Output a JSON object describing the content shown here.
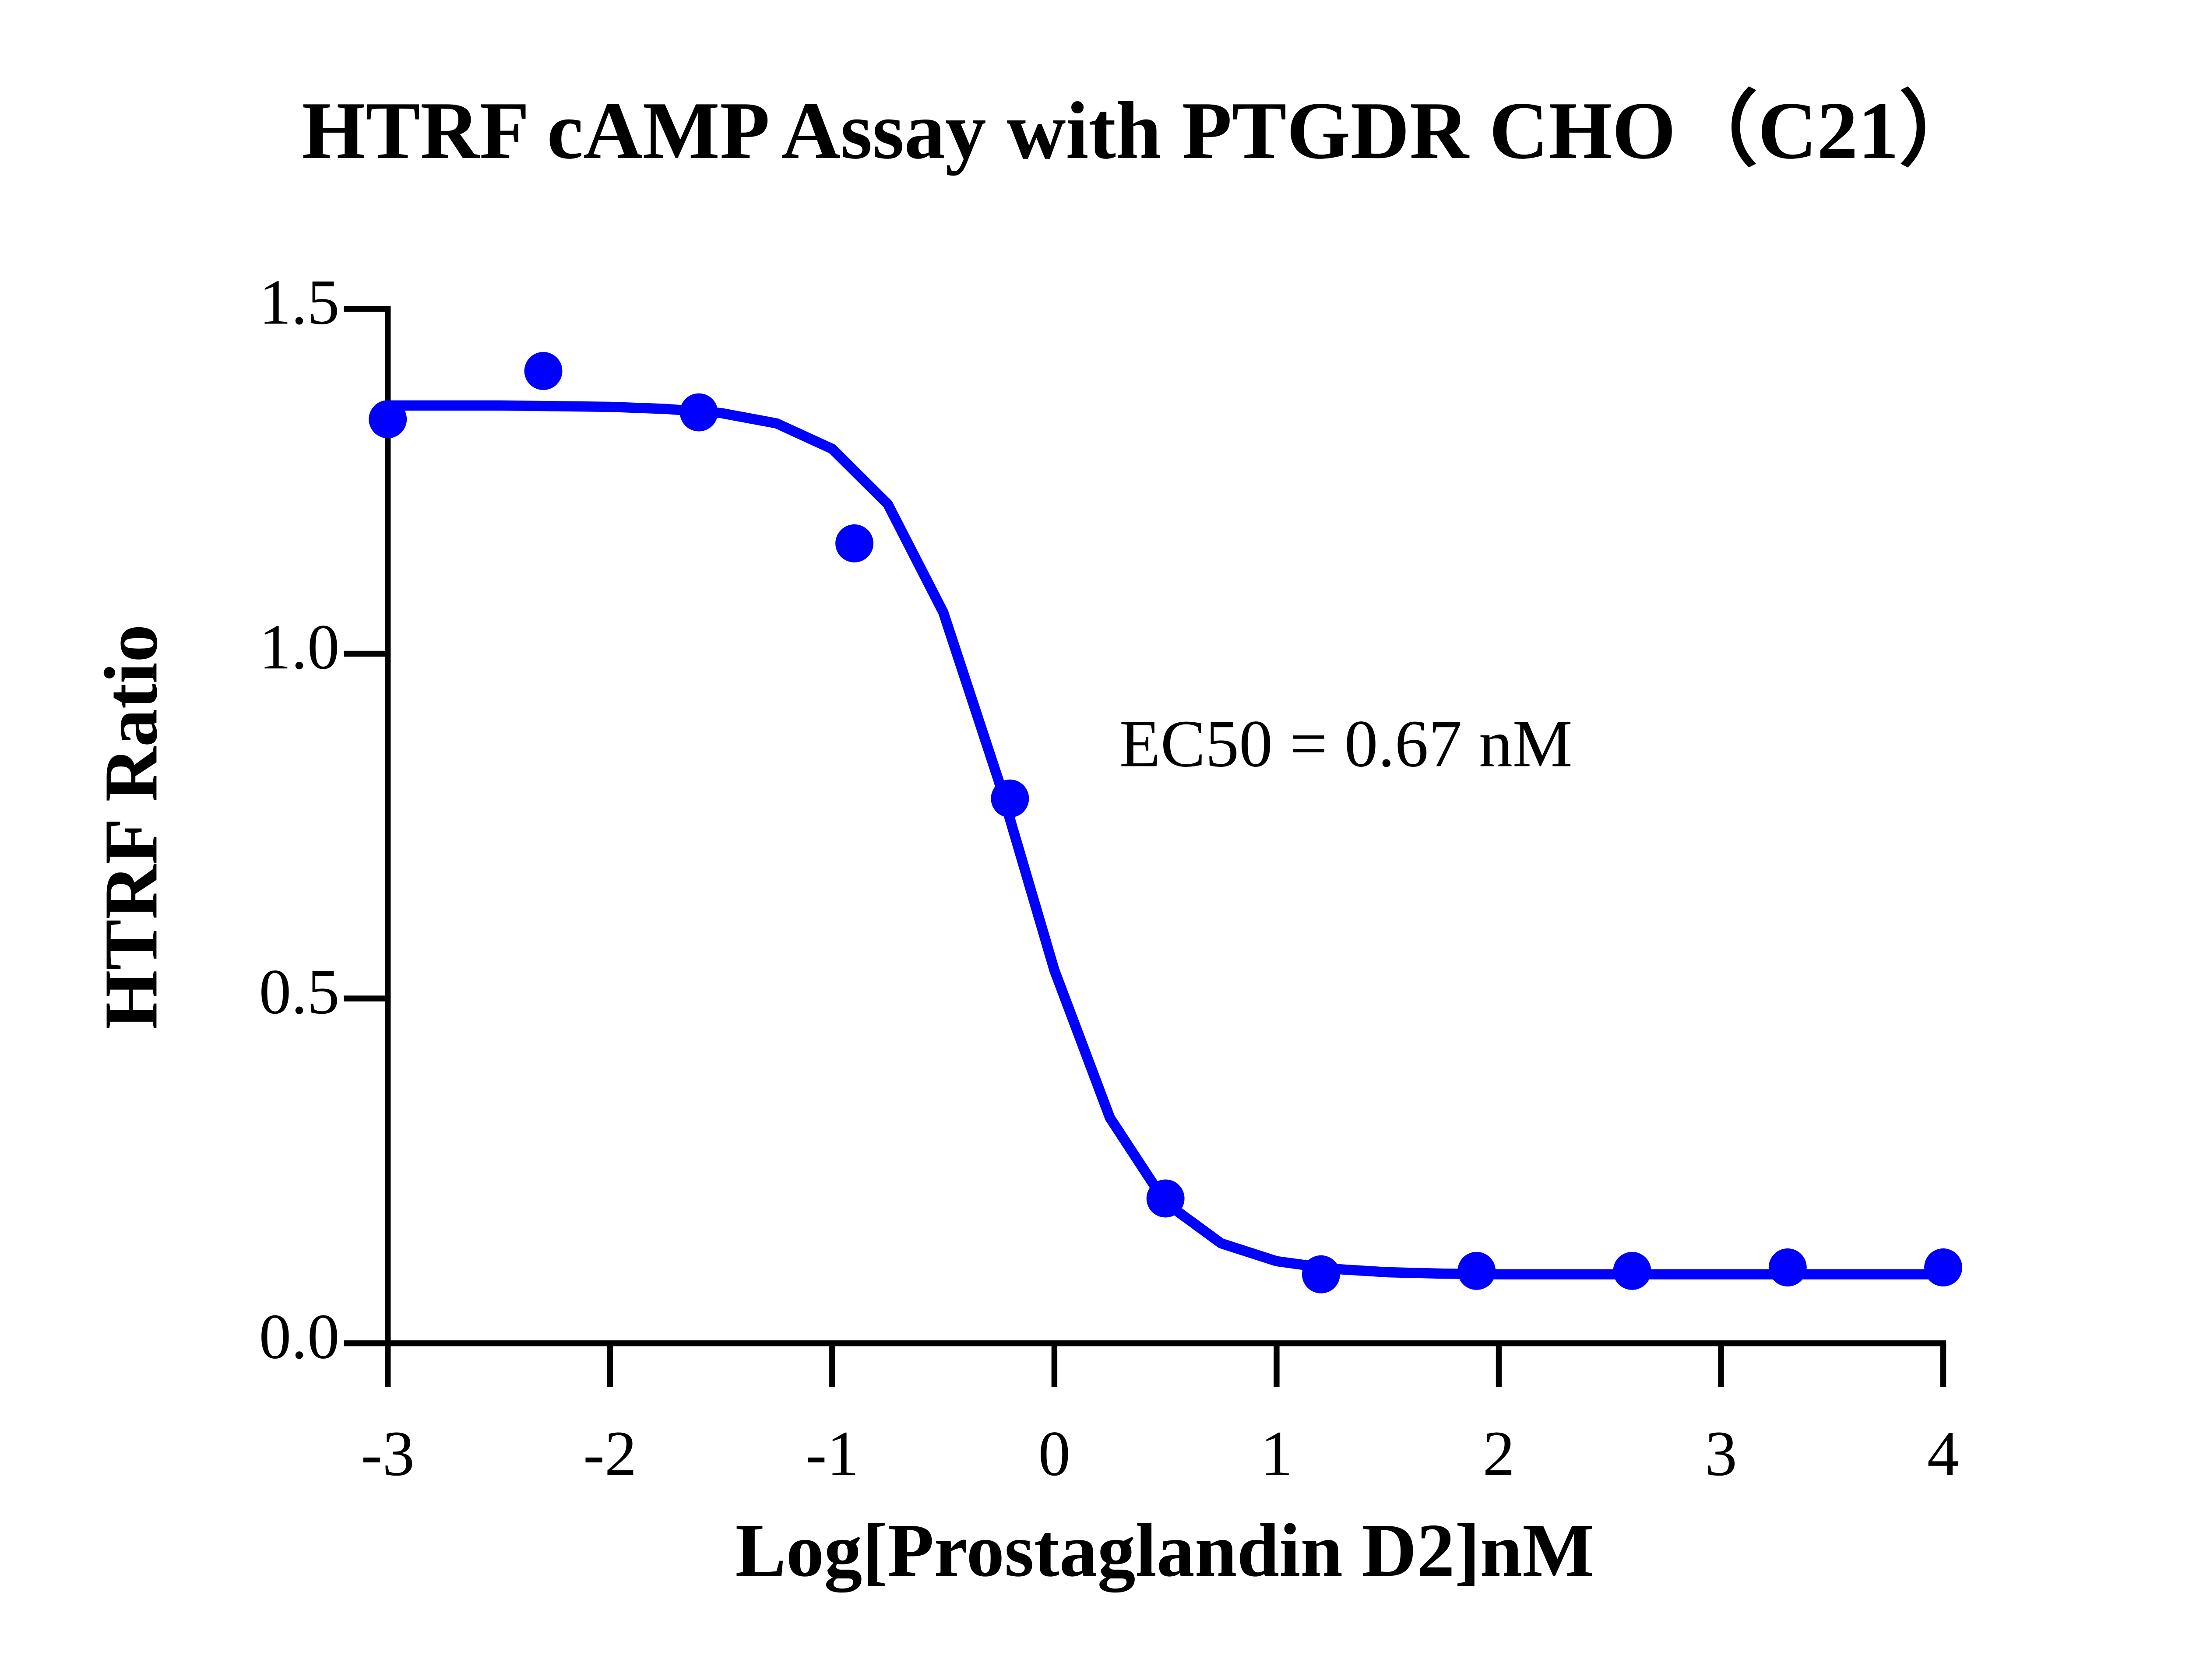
{
  "chart_data": {
    "type": "scatter",
    "title": "HTRF cAMP Assay with PTGDR CHO（C21）",
    "x_label": "Log[Prostaglandin D2]nM",
    "y_label": "HTRF Ratio",
    "annotation": "EC50 = 0.67 nM",
    "xlim": [
      -3,
      4
    ],
    "xticks": [
      -3,
      -2,
      -1,
      0,
      1,
      2,
      3,
      4
    ],
    "ylim": [
      0,
      1.5
    ],
    "yticks": [
      {
        "value": 0,
        "label": "0.0"
      },
      {
        "value": 0.5,
        "label": "0.5"
      },
      {
        "value": 1,
        "label": "1.0"
      },
      {
        "value": 1.5,
        "label": "1.5"
      }
    ],
    "series": [
      {
        "type": "scatter",
        "color": "#0000ff",
        "x": [
          -3,
          -2.3,
          -1.6,
          -0.9,
          -0.2,
          0.5,
          1.2,
          1.9,
          2.6,
          3.3,
          4
        ],
        "values": [
          1.34,
          1.41,
          1.35,
          1.16,
          0.79,
          0.21,
          0.1,
          0.105,
          0.105,
          0.11,
          0.11
        ]
      },
      {
        "type": "line",
        "color": "#0000ff",
        "x": [
          -3,
          -2.75,
          -2.5,
          -2.25,
          -2,
          -1.75,
          -1.5,
          -1.25,
          -1,
          -0.75,
          -0.5,
          -0.25,
          0,
          0.25,
          0.5,
          0.75,
          1,
          1.25,
          1.5,
          1.75,
          2,
          2.5,
          3,
          3.5,
          4
        ],
        "values": [
          1.36,
          1.36,
          1.36,
          1.359,
          1.358,
          1.355,
          1.349,
          1.334,
          1.297,
          1.217,
          1.06,
          0.815,
          0.541,
          0.327,
          0.204,
          0.145,
          0.119,
          0.108,
          0.103,
          0.101,
          0.1,
          0.1,
          0.1,
          0.1,
          0.1
        ]
      }
    ]
  }
}
